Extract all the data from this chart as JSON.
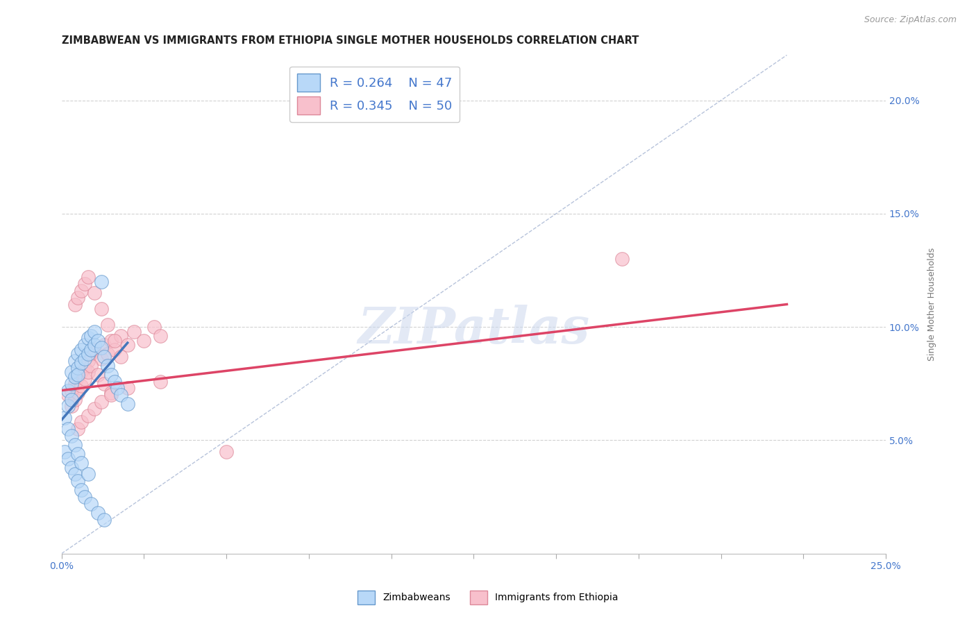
{
  "title": "ZIMBABWEAN VS IMMIGRANTS FROM ETHIOPIA SINGLE MOTHER HOUSEHOLDS CORRELATION CHART",
  "source": "Source: ZipAtlas.com",
  "ylabel": "Single Mother Households",
  "xlim": [
    0.0,
    0.25
  ],
  "ylim": [
    0.0,
    0.22
  ],
  "background_color": "#ffffff",
  "grid_color": "#cccccc",
  "watermark_text": "ZIPatlas",
  "legend_r1": "R = 0.264",
  "legend_n1": "N = 47",
  "legend_r2": "R = 0.345",
  "legend_n2": "N = 50",
  "zim_fill_color": "#b8d8f8",
  "zim_edge_color": "#6699cc",
  "eth_fill_color": "#f8c0cc",
  "eth_edge_color": "#dd8899",
  "zim_line_color": "#4477bb",
  "eth_line_color": "#dd4466",
  "ref_line_color": "#99aacc",
  "zim_scatter_x": [
    0.001,
    0.002,
    0.002,
    0.003,
    0.003,
    0.003,
    0.004,
    0.004,
    0.005,
    0.005,
    0.005,
    0.006,
    0.006,
    0.007,
    0.007,
    0.008,
    0.008,
    0.009,
    0.009,
    0.01,
    0.01,
    0.011,
    0.012,
    0.013,
    0.014,
    0.015,
    0.016,
    0.017,
    0.018,
    0.02,
    0.001,
    0.002,
    0.003,
    0.004,
    0.005,
    0.006,
    0.007,
    0.009,
    0.011,
    0.013,
    0.002,
    0.003,
    0.004,
    0.005,
    0.006,
    0.008,
    0.012
  ],
  "zim_scatter_y": [
    0.06,
    0.065,
    0.072,
    0.068,
    0.075,
    0.08,
    0.078,
    0.085,
    0.082,
    0.079,
    0.088,
    0.084,
    0.09,
    0.086,
    0.092,
    0.088,
    0.095,
    0.09,
    0.096,
    0.092,
    0.098,
    0.094,
    0.091,
    0.087,
    0.083,
    0.079,
    0.076,
    0.073,
    0.07,
    0.066,
    0.045,
    0.042,
    0.038,
    0.035,
    0.032,
    0.028,
    0.025,
    0.022,
    0.018,
    0.015,
    0.055,
    0.052,
    0.048,
    0.044,
    0.04,
    0.035,
    0.12
  ],
  "eth_scatter_x": [
    0.002,
    0.003,
    0.004,
    0.005,
    0.006,
    0.007,
    0.008,
    0.009,
    0.01,
    0.012,
    0.013,
    0.014,
    0.015,
    0.016,
    0.018,
    0.02,
    0.022,
    0.025,
    0.028,
    0.03,
    0.003,
    0.004,
    0.005,
    0.006,
    0.007,
    0.008,
    0.009,
    0.011,
    0.013,
    0.015,
    0.004,
    0.005,
    0.006,
    0.007,
    0.008,
    0.01,
    0.012,
    0.014,
    0.016,
    0.018,
    0.005,
    0.006,
    0.008,
    0.01,
    0.012,
    0.015,
    0.02,
    0.03,
    0.17,
    0.05
  ],
  "eth_scatter_y": [
    0.07,
    0.072,
    0.075,
    0.078,
    0.08,
    0.082,
    0.085,
    0.088,
    0.09,
    0.086,
    0.092,
    0.088,
    0.094,
    0.09,
    0.096,
    0.092,
    0.098,
    0.094,
    0.1,
    0.096,
    0.065,
    0.068,
    0.071,
    0.074,
    0.077,
    0.08,
    0.083,
    0.079,
    0.075,
    0.071,
    0.11,
    0.113,
    0.116,
    0.119,
    0.122,
    0.115,
    0.108,
    0.101,
    0.094,
    0.087,
    0.055,
    0.058,
    0.061,
    0.064,
    0.067,
    0.07,
    0.073,
    0.076,
    0.13,
    0.045
  ],
  "zim_trend_x": [
    0.0,
    0.02
  ],
  "zim_trend_y": [
    0.059,
    0.093
  ],
  "eth_trend_x": [
    0.0,
    0.22
  ],
  "eth_trend_y": [
    0.072,
    0.11
  ],
  "ref_line_x": [
    0.0,
    0.22
  ],
  "ref_line_y": [
    0.0,
    0.22
  ],
  "x_ticks": [
    0.0,
    0.025,
    0.05,
    0.075,
    0.1,
    0.125,
    0.15,
    0.175,
    0.2,
    0.225,
    0.25
  ],
  "y_ticks": [
    0.05,
    0.1,
    0.15,
    0.2
  ],
  "title_fontsize": 10.5,
  "axis_label_fontsize": 9,
  "tick_fontsize": 10,
  "legend_fontsize": 13
}
